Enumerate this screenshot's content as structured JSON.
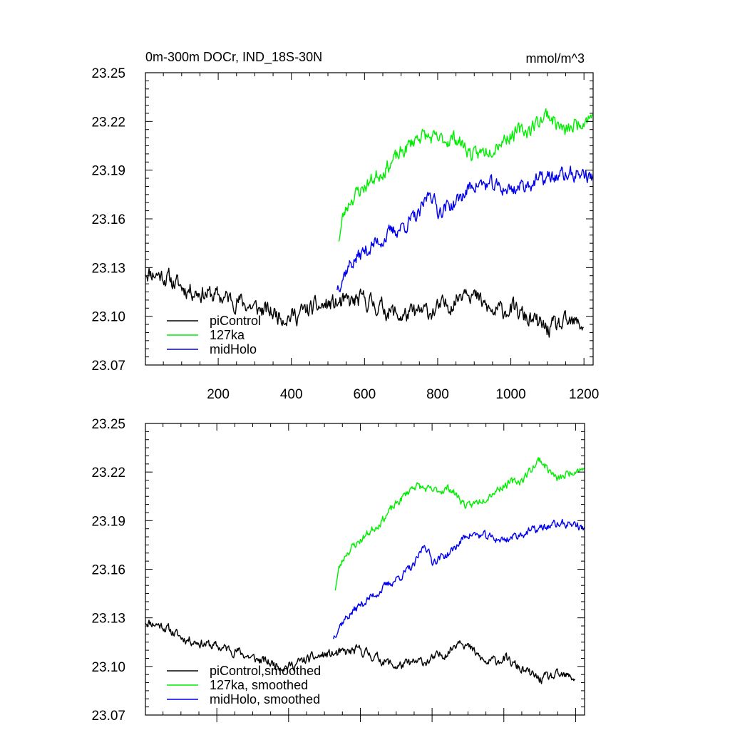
{
  "chart_data": [
    {
      "type": "line",
      "title": "0m-300m DOCr, IND_18S-30N",
      "units": "mmol/m^3",
      "xlim": [
        1,
        1225
      ],
      "ylim": [
        23.07,
        23.25
      ],
      "yticks": [
        "23.07",
        "23.10",
        "23.13",
        "23.16",
        "23.19",
        "23.22",
        "23.25"
      ],
      "xticks": [
        "200",
        "400",
        "600",
        "800",
        "1000",
        "1200"
      ],
      "legend_position": "bottom-left",
      "series": [
        {
          "name": "piControl",
          "color": "#000000",
          "x_start": 1,
          "x_end": 1200,
          "noise": 0.0065,
          "seed": 11,
          "x": [
            1,
            50,
            100,
            150,
            200,
            250,
            300,
            350,
            400,
            450,
            500,
            550,
            600,
            650,
            700,
            750,
            800,
            850,
            880,
            900,
            950,
            1000,
            1050,
            1100,
            1150,
            1200
          ],
          "y": [
            23.128,
            23.125,
            23.118,
            23.115,
            23.112,
            23.11,
            23.105,
            23.102,
            23.1,
            23.104,
            23.107,
            23.108,
            23.11,
            23.105,
            23.1,
            23.102,
            23.104,
            23.11,
            23.12,
            23.112,
            23.102,
            23.105,
            23.098,
            23.092,
            23.095,
            23.095
          ]
        },
        {
          "name": "127ka",
          "color": "#00ee00",
          "x_start": 530,
          "x_end": 1225,
          "noise": 0.0055,
          "seed": 23,
          "x": [
            530,
            540,
            560,
            600,
            650,
            700,
            750,
            800,
            850,
            900,
            950,
            1000,
            1050,
            1100,
            1150,
            1200,
            1225
          ],
          "y": [
            23.148,
            23.16,
            23.172,
            23.18,
            23.19,
            23.2,
            23.212,
            23.208,
            23.21,
            23.198,
            23.205,
            23.212,
            23.215,
            23.225,
            23.213,
            23.222,
            23.224
          ]
        },
        {
          "name": "midHolo",
          "color": "#0000ee",
          "x_start": 525,
          "x_end": 1225,
          "noise": 0.0055,
          "seed": 37,
          "x": [
            525,
            540,
            560,
            600,
            650,
            700,
            750,
            780,
            800,
            850,
            900,
            950,
            1000,
            1050,
            1100,
            1150,
            1200,
            1225
          ],
          "y": [
            23.118,
            23.125,
            23.132,
            23.14,
            23.148,
            23.155,
            23.162,
            23.178,
            23.165,
            23.17,
            23.182,
            23.18,
            23.178,
            23.182,
            23.185,
            23.187,
            23.188,
            23.184
          ]
        }
      ]
    },
    {
      "type": "line",
      "title": "",
      "xlim": [
        1,
        1225
      ],
      "ylim": [
        23.07,
        23.25
      ],
      "yticks": [
        "23.07",
        "23.10",
        "23.13",
        "23.16",
        "23.19",
        "23.22",
        "23.25"
      ],
      "xticks": [],
      "legend_position": "bottom-left",
      "series": [
        {
          "name": "piControl,smoothed",
          "color": "#000000",
          "x_start": 1,
          "x_end": 1200,
          "noise": 0.0035,
          "seed": 11,
          "x": [
            1,
            50,
            100,
            150,
            200,
            250,
            300,
            350,
            400,
            450,
            500,
            550,
            600,
            650,
            700,
            750,
            800,
            850,
            880,
            900,
            950,
            1000,
            1050,
            1100,
            1150,
            1200
          ],
          "y": [
            23.128,
            23.125,
            23.118,
            23.115,
            23.112,
            23.11,
            23.105,
            23.102,
            23.1,
            23.104,
            23.107,
            23.108,
            23.11,
            23.105,
            23.1,
            23.102,
            23.104,
            23.11,
            23.118,
            23.112,
            23.102,
            23.105,
            23.098,
            23.092,
            23.094,
            23.093
          ]
        },
        {
          "name": "127ka, smoothed",
          "color": "#00ee00",
          "x_start": 530,
          "x_end": 1225,
          "noise": 0.003,
          "seed": 23,
          "x": [
            530,
            540,
            560,
            600,
            650,
            700,
            750,
            800,
            850,
            900,
            950,
            1000,
            1050,
            1100,
            1150,
            1200,
            1225
          ],
          "y": [
            23.148,
            23.16,
            23.17,
            23.178,
            23.188,
            23.2,
            23.212,
            23.208,
            23.21,
            23.198,
            23.205,
            23.212,
            23.215,
            23.228,
            23.215,
            23.222,
            23.222
          ]
        },
        {
          "name": "midHolo, smoothed",
          "color": "#0000ee",
          "x_start": 525,
          "x_end": 1225,
          "noise": 0.003,
          "seed": 37,
          "x": [
            525,
            540,
            560,
            600,
            650,
            700,
            750,
            780,
            800,
            850,
            900,
            950,
            1000,
            1050,
            1100,
            1150,
            1200,
            1225
          ],
          "y": [
            23.118,
            23.125,
            23.13,
            23.138,
            23.146,
            23.154,
            23.162,
            23.176,
            23.165,
            23.17,
            23.182,
            23.18,
            23.178,
            23.182,
            23.185,
            23.188,
            23.188,
            23.184
          ]
        }
      ]
    }
  ]
}
